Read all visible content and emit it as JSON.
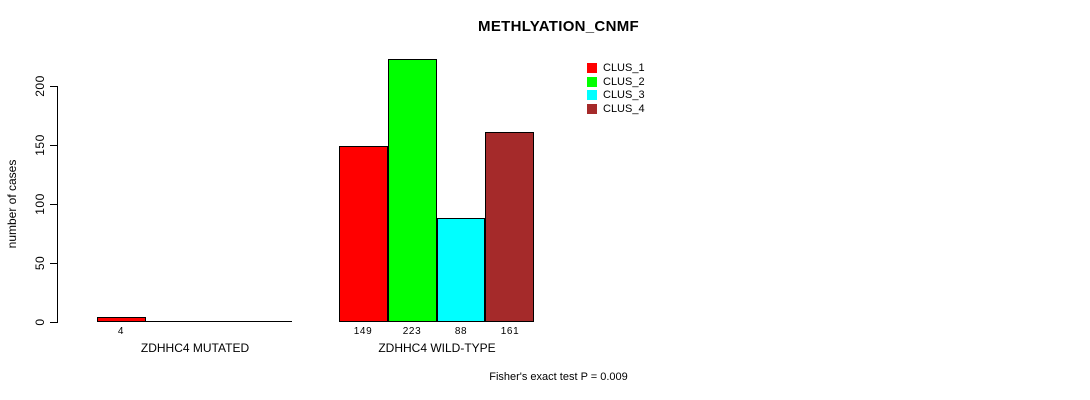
{
  "chart_data": {
    "type": "bar",
    "title": "METHLYATION_CNMF",
    "ylabel": "number of cases",
    "xlabel": "",
    "ylim": [
      0,
      223
    ],
    "yticks": [
      0,
      50,
      100,
      150,
      200
    ],
    "grid": false,
    "legend_position": "top-right",
    "series": [
      "CLUS_1",
      "CLUS_2",
      "CLUS_3",
      "CLUS_4"
    ],
    "colors": [
      "#ff0000",
      "#00ff00",
      "#00ffff",
      "#a52a2a"
    ],
    "groups": [
      {
        "label": "ZDHHC4 MUTATED",
        "values": [
          4,
          0,
          0,
          0
        ],
        "bar_labels": [
          "4",
          "",
          "",
          ""
        ]
      },
      {
        "label": "ZDHHC4 WILD-TYPE",
        "values": [
          149,
          223,
          88,
          161
        ],
        "bar_labels": [
          "149",
          "223",
          "88",
          "161"
        ]
      }
    ],
    "annotation": "Fisher's exact test P = 0.009",
    "legend": [
      {
        "label": "CLUS_1",
        "color": "#ff0000"
      },
      {
        "label": "CLUS_2",
        "color": "#00ff00"
      },
      {
        "label": "CLUS_3",
        "color": "#00ffff"
      },
      {
        "label": "CLUS_4",
        "color": "#a52a2a"
      }
    ],
    "axis_color": "#000000",
    "background": "#ffffff"
  }
}
